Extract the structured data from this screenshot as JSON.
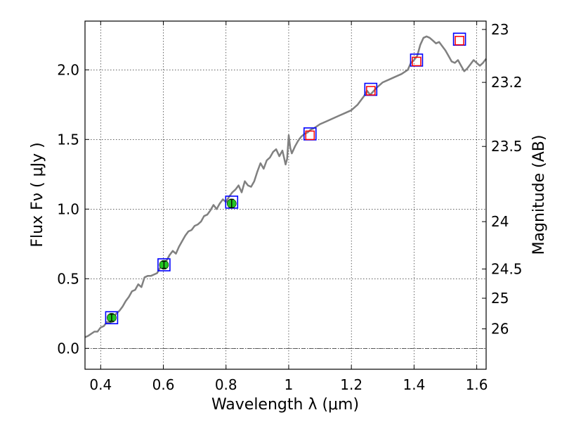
{
  "chart_data": {
    "type": "line",
    "title": "",
    "xlabel": "Wavelength  λ (μm)",
    "ylabel_left": "Flux  Fν  ( μJy )",
    "ylabel_right": "Magnitude (AB)",
    "xlim": [
      0.35,
      1.63
    ],
    "ylim": [
      -0.15,
      2.35
    ],
    "grid": true,
    "x_ticks": [
      {
        "value": 0.4,
        "label": "0.4"
      },
      {
        "value": 0.6,
        "label": "0.6"
      },
      {
        "value": 0.8,
        "label": "0.8"
      },
      {
        "value": 1.0,
        "label": "1"
      },
      {
        "value": 1.2,
        "label": "1.2"
      },
      {
        "value": 1.4,
        "label": "1.4"
      },
      {
        "value": 1.6,
        "label": "1.6"
      }
    ],
    "y_ticks": [
      {
        "value": 0.0,
        "label": "0.0"
      },
      {
        "value": 0.5,
        "label": "0.5"
      },
      {
        "value": 1.0,
        "label": "1.0"
      },
      {
        "value": 1.5,
        "label": "1.5"
      },
      {
        "value": 2.0,
        "label": "2.0"
      }
    ],
    "magnitude_ticks": [
      {
        "flux": 2.29,
        "label": "23"
      },
      {
        "flux": 1.91,
        "label": "23.2"
      },
      {
        "flux": 1.45,
        "label": "23.5"
      },
      {
        "flux": 0.91,
        "label": "24"
      },
      {
        "flux": 0.57,
        "label": "24.5"
      },
      {
        "flux": 0.36,
        "label": "25"
      },
      {
        "flux": 0.14,
        "label": "26"
      }
    ],
    "series": [
      {
        "name": "model spectrum",
        "style": "line",
        "color": "#808080",
        "x": [
          0.35,
          0.36,
          0.38,
          0.39,
          0.4,
          0.41,
          0.42,
          0.43,
          0.44,
          0.45,
          0.46,
          0.47,
          0.48,
          0.49,
          0.5,
          0.51,
          0.52,
          0.53,
          0.54,
          0.55,
          0.56,
          0.57,
          0.58,
          0.59,
          0.6,
          0.61,
          0.62,
          0.63,
          0.64,
          0.65,
          0.66,
          0.67,
          0.68,
          0.69,
          0.7,
          0.71,
          0.72,
          0.73,
          0.74,
          0.75,
          0.76,
          0.77,
          0.78,
          0.79,
          0.8,
          0.81,
          0.82,
          0.83,
          0.84,
          0.85,
          0.86,
          0.87,
          0.88,
          0.89,
          0.9,
          0.91,
          0.92,
          0.93,
          0.94,
          0.95,
          0.96,
          0.97,
          0.98,
          0.985,
          0.99,
          0.995,
          1.0,
          1.005,
          1.01,
          1.02,
          1.03,
          1.04,
          1.05,
          1.06,
          1.07,
          1.08,
          1.1,
          1.12,
          1.14,
          1.16,
          1.18,
          1.2,
          1.22,
          1.24,
          1.25,
          1.26,
          1.28,
          1.3,
          1.32,
          1.34,
          1.36,
          1.38,
          1.39,
          1.4,
          1.41,
          1.42,
          1.43,
          1.44,
          1.45,
          1.46,
          1.47,
          1.48,
          1.49,
          1.5,
          1.51,
          1.52,
          1.53,
          1.54,
          1.55,
          1.56,
          1.57,
          1.58,
          1.59,
          1.6,
          1.61,
          1.62,
          1.63
        ],
        "y": [
          0.08,
          0.09,
          0.12,
          0.12,
          0.15,
          0.16,
          0.19,
          0.18,
          0.22,
          0.25,
          0.27,
          0.3,
          0.34,
          0.37,
          0.41,
          0.42,
          0.46,
          0.44,
          0.51,
          0.52,
          0.52,
          0.53,
          0.54,
          0.58,
          0.62,
          0.63,
          0.67,
          0.7,
          0.68,
          0.73,
          0.77,
          0.81,
          0.84,
          0.85,
          0.88,
          0.89,
          0.91,
          0.95,
          0.96,
          0.99,
          1.03,
          1.0,
          1.04,
          1.07,
          1.05,
          1.09,
          1.12,
          1.14,
          1.17,
          1.12,
          1.2,
          1.17,
          1.16,
          1.2,
          1.27,
          1.33,
          1.29,
          1.35,
          1.37,
          1.41,
          1.43,
          1.38,
          1.42,
          1.37,
          1.32,
          1.36,
          1.53,
          1.44,
          1.4,
          1.45,
          1.49,
          1.52,
          1.54,
          1.55,
          1.57,
          1.58,
          1.61,
          1.63,
          1.65,
          1.67,
          1.69,
          1.71,
          1.75,
          1.81,
          1.85,
          1.82,
          1.87,
          1.91,
          1.93,
          1.95,
          1.97,
          2.0,
          2.05,
          2.07,
          2.1,
          2.18,
          2.23,
          2.24,
          2.23,
          2.21,
          2.19,
          2.2,
          2.17,
          2.14,
          2.1,
          2.06,
          2.05,
          2.07,
          2.03,
          1.99,
          2.01,
          2.04,
          2.07,
          2.05,
          2.03,
          2.05,
          2.08
        ]
      },
      {
        "name": "observed photometry (green)",
        "style": "points",
        "color": "#22c422",
        "x": [
          0.435,
          0.602,
          0.818
        ],
        "y": [
          0.22,
          0.6,
          1.04
        ],
        "yerr": [
          0.025,
          0.025,
          0.03
        ]
      },
      {
        "name": "model photometry (blue squares)",
        "style": "open-squares",
        "color": "#0000ff",
        "x": [
          0.435,
          0.602,
          0.818,
          1.068,
          1.262,
          1.408,
          1.545
        ],
        "y": [
          0.22,
          0.6,
          1.05,
          1.54,
          1.86,
          2.07,
          2.22
        ]
      },
      {
        "name": "red squares",
        "style": "open-squares",
        "color": "#ff0000",
        "x": [
          1.068,
          1.262,
          1.408,
          1.545
        ],
        "y": [
          1.53,
          1.85,
          2.06,
          2.21
        ]
      }
    ]
  }
}
